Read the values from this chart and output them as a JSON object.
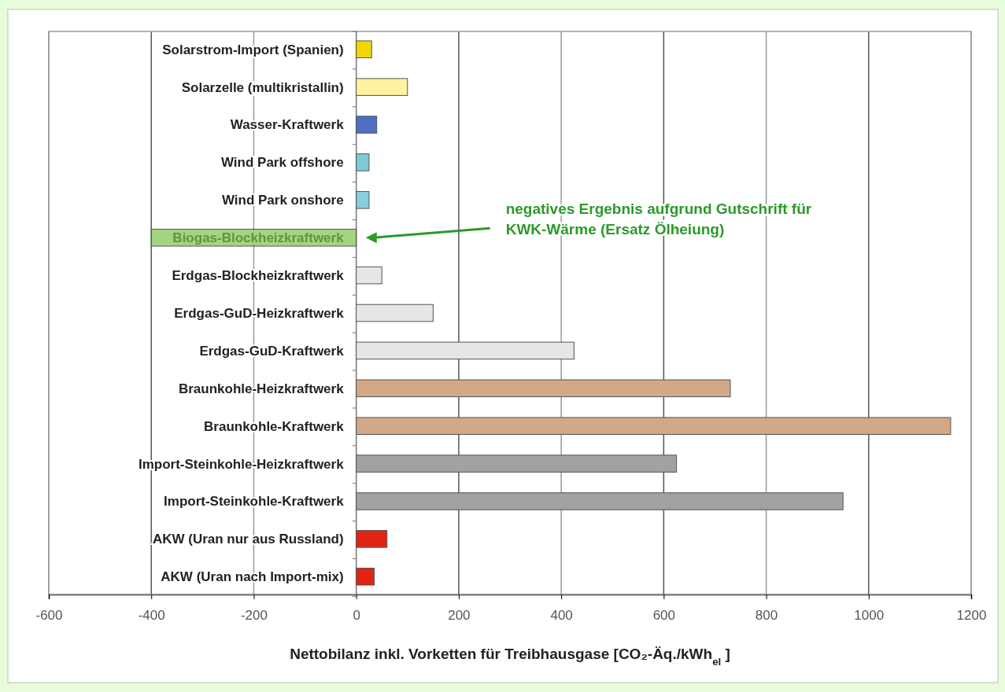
{
  "chart_data": {
    "type": "bar",
    "orientation": "horizontal",
    "xlabel": "Nettobilanz inkl. Vorketten für Treibhausgase [CO₂-Äq./kWh$_{el}$ ]",
    "categories": [
      "Solarstrom-Import (Spanien)",
      "Solarzelle (multikristallin)",
      "Wasser-Kraftwerk",
      "Wind Park offshore",
      "Wind Park onshore",
      "Biogas-Blockheizkraftwerk",
      "Erdgas-Blockheizkraftwerk",
      "Erdgas-GuD-Heizkraftwerk",
      "Erdgas-GuD-Kraftwerk",
      "Braunkohle-Heizkraftwerk",
      "Braunkohle-Kraftwerk",
      "Import-Steinkohle-Heizkraftwerk",
      "Import-Steinkohle-Kraftwerk",
      "AKW (Uran nur aus Russland)",
      "AKW (Uran nach Import-mix)"
    ],
    "values": [
      30,
      100,
      40,
      25,
      25,
      -400,
      50,
      150,
      425,
      730,
      1160,
      625,
      950,
      60,
      35
    ],
    "colors": [
      "#f0d800",
      "#fff2a0",
      "#4f6fc4",
      "#7ecbd8",
      "#86cfdc",
      "#7cc24c",
      "#e6e6e6",
      "#e6e6e6",
      "#e6e6e6",
      "#d2a888",
      "#d2a888",
      "#a2a2a2",
      "#a2a2a2",
      "#e02414",
      "#e02414"
    ],
    "xlim": [
      -600,
      1200
    ],
    "xticks": [
      -600,
      -400,
      -200,
      0,
      200,
      400,
      600,
      800,
      1000,
      1200
    ],
    "grid": "x",
    "annotations": [
      "negatives Ergebnis aufgrund Gutschrift für KWK-Wärme (Ersatz Ölheiung)"
    ]
  }
}
